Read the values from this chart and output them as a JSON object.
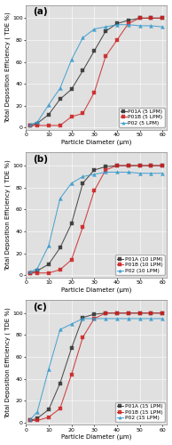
{
  "subplots": [
    {
      "label": "(a)",
      "series": [
        {
          "name": "P01A (5 LPM)",
          "color": "#333333",
          "marker": "s",
          "x": [
            2,
            5,
            10,
            15,
            20,
            25,
            30,
            35,
            40,
            45,
            50,
            55,
            60
          ],
          "y": [
            2,
            4,
            12,
            26,
            35,
            52,
            70,
            88,
            95,
            98,
            100,
            100,
            100
          ]
        },
        {
          "name": "P01B (5 LPM)",
          "color": "#cc2222",
          "marker": "s",
          "x": [
            2,
            5,
            10,
            15,
            20,
            25,
            30,
            35,
            40,
            45,
            50,
            55,
            60
          ],
          "y": [
            2,
            2,
            2,
            2,
            10,
            13,
            32,
            65,
            80,
            95,
            100,
            100,
            100
          ]
        },
        {
          "name": "P02 (5 LPM)",
          "color": "#3399cc",
          "marker": "^",
          "x": [
            2,
            5,
            10,
            15,
            20,
            25,
            30,
            35,
            40,
            45,
            50,
            55,
            60
          ],
          "y": [
            3,
            5,
            21,
            36,
            62,
            82,
            90,
            92,
            94,
            94,
            93,
            93,
            92
          ]
        }
      ]
    },
    {
      "label": "(b)",
      "series": [
        {
          "name": "P01A (10 LPM)",
          "color": "#333333",
          "marker": "s",
          "x": [
            2,
            5,
            10,
            15,
            20,
            25,
            30,
            35,
            40,
            45,
            50,
            55,
            60
          ],
          "y": [
            2,
            4,
            10,
            25,
            47,
            84,
            96,
            99,
            100,
            100,
            100,
            100,
            100
          ]
        },
        {
          "name": "P01B (10 LPM)",
          "color": "#cc2222",
          "marker": "s",
          "x": [
            2,
            5,
            10,
            15,
            20,
            25,
            30,
            35,
            40,
            45,
            50,
            55,
            60
          ],
          "y": [
            2,
            2,
            2,
            5,
            14,
            44,
            77,
            96,
            100,
            100,
            100,
            100,
            100
          ]
        },
        {
          "name": "P02 (10 LPM)",
          "color": "#3399cc",
          "marker": "^",
          "x": [
            2,
            5,
            10,
            15,
            20,
            25,
            30,
            35,
            40,
            45,
            50,
            55,
            60
          ],
          "y": [
            3,
            6,
            27,
            70,
            84,
            90,
            92,
            94,
            94,
            94,
            93,
            93,
            93
          ]
        }
      ]
    },
    {
      "label": "(c)",
      "series": [
        {
          "name": "P01A (15 LPM)",
          "color": "#333333",
          "marker": "s",
          "x": [
            2,
            5,
            10,
            15,
            20,
            25,
            30,
            35,
            40,
            45,
            50,
            55,
            60
          ],
          "y": [
            2,
            4,
            12,
            36,
            68,
            96,
            99,
            100,
            100,
            100,
            100,
            100,
            100
          ]
        },
        {
          "name": "P01B (15 LPM)",
          "color": "#cc2222",
          "marker": "s",
          "x": [
            2,
            5,
            10,
            15,
            20,
            25,
            30,
            35,
            40,
            45,
            50,
            55,
            60
          ],
          "y": [
            2,
            2,
            5,
            13,
            44,
            78,
            95,
            100,
            100,
            100,
            100,
            100,
            100
          ]
        },
        {
          "name": "P02 (15 LPM)",
          "color": "#3399cc",
          "marker": "^",
          "x": [
            2,
            5,
            10,
            15,
            20,
            25,
            30,
            35,
            40,
            45,
            50,
            55,
            60
          ],
          "y": [
            3,
            10,
            49,
            85,
            90,
            95,
            95,
            95,
            95,
            95,
            95,
            95,
            95
          ]
        }
      ]
    }
  ],
  "xlabel": "Particle Diameter (μm)",
  "ylabel": "Total Deposition Efficiency ( TDE %)",
  "xlim": [
    0,
    62
  ],
  "ylim": [
    -2,
    112
  ],
  "yticks": [
    0,
    20,
    40,
    60,
    80,
    100
  ],
  "xticks": [
    0,
    10,
    20,
    30,
    40,
    50,
    60
  ],
  "bg_color": "#e0e0e0",
  "line_alpha": 0.85,
  "markersize": 2.8,
  "linewidth": 0.75,
  "fontsize_label": 5.0,
  "fontsize_tick": 4.5,
  "fontsize_legend": 4.2,
  "fontsize_panel": 7.5
}
